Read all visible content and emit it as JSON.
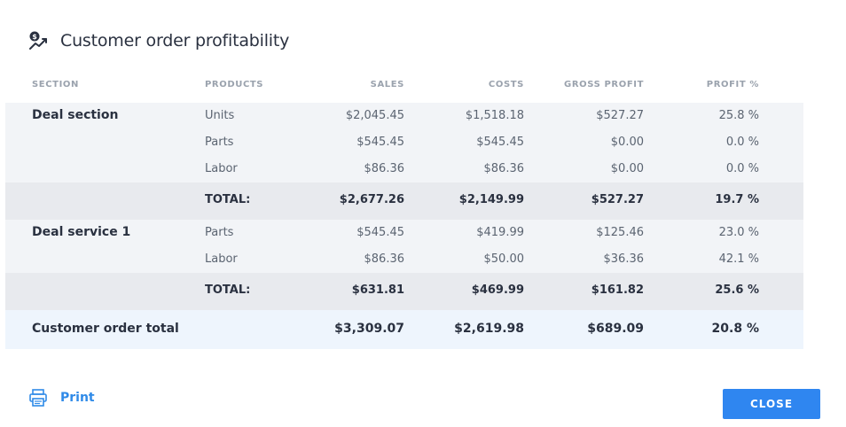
{
  "dialog": {
    "title": "Customer order profitability",
    "icon": "money-trend-icon"
  },
  "table": {
    "headers": {
      "section": "SECTION",
      "products": "PRODUCTS",
      "sales": "SALES",
      "costs": "COSTS",
      "gross_profit": "GROSS PROFIT",
      "profit_pct": "PROFIT %"
    },
    "groups": [
      {
        "name": "Deal section",
        "rows": [
          {
            "product": "Units",
            "sales": "$2,045.45",
            "costs": "$1,518.18",
            "gross_profit": "$527.27",
            "profit_pct": "25.8 %"
          },
          {
            "product": "Parts",
            "sales": "$545.45",
            "costs": "$545.45",
            "gross_profit": "$0.00",
            "profit_pct": "0.0 %"
          },
          {
            "product": "Labor",
            "sales": "$86.36",
            "costs": "$86.36",
            "gross_profit": "$0.00",
            "profit_pct": "0.0 %"
          }
        ],
        "total": {
          "label": "TOTAL:",
          "sales": "$2,677.26",
          "costs": "$2,149.99",
          "gross_profit": "$527.27",
          "profit_pct": "19.7 %"
        }
      },
      {
        "name": "Deal service 1",
        "rows": [
          {
            "product": "Parts",
            "sales": "$545.45",
            "costs": "$419.99",
            "gross_profit": "$125.46",
            "profit_pct": "23.0 %"
          },
          {
            "product": "Labor",
            "sales": "$86.36",
            "costs": "$50.00",
            "gross_profit": "$36.36",
            "profit_pct": "42.1 %"
          }
        ],
        "total": {
          "label": "TOTAL:",
          "sales": "$631.81",
          "costs": "$469.99",
          "gross_profit": "$161.82",
          "profit_pct": "25.6 %"
        }
      }
    ],
    "grand_total": {
      "label": "Customer order total",
      "sales": "$3,309.07",
      "costs": "$2,619.98",
      "gross_profit": "$689.09",
      "profit_pct": "20.8 %"
    }
  },
  "footer": {
    "print_label": "Print",
    "print_icon": "printer-icon",
    "close_label": "CLOSE"
  },
  "colors": {
    "accent": "#2f86f0",
    "link": "#2f8ae8",
    "group_bg": "#f2f4f7",
    "total_bg": "#e8eaee",
    "grand_bg": "#eef5fd"
  }
}
